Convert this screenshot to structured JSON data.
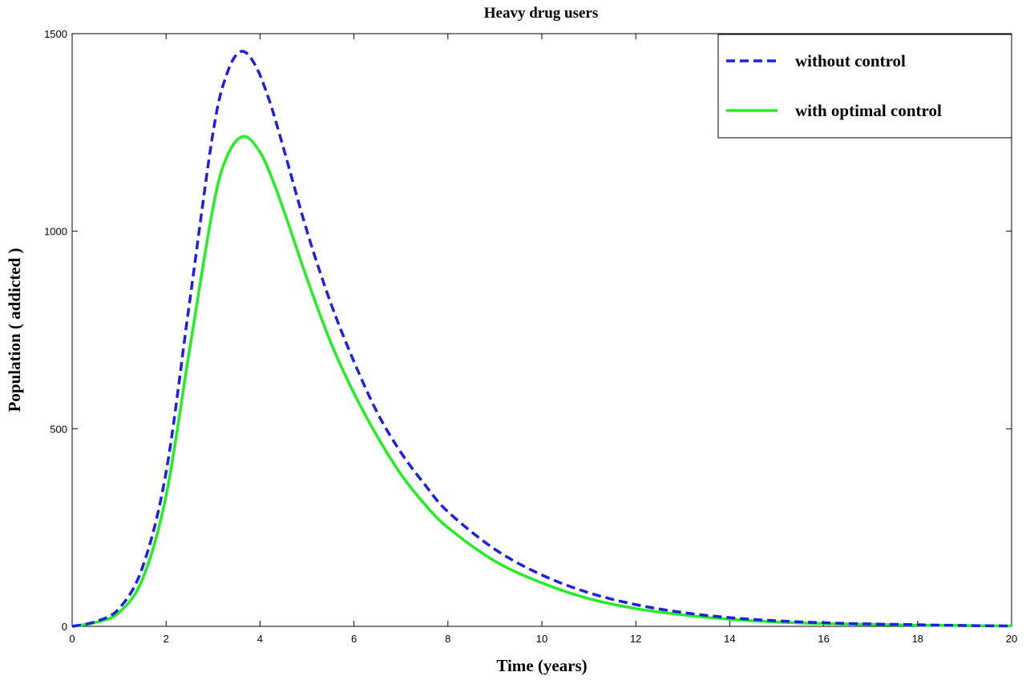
{
  "chart_data": {
    "type": "line",
    "title": "Heavy drug users",
    "xlabel": "Time (years)",
    "ylabel": "Population ( addicted )",
    "xlim": [
      0,
      20
    ],
    "ylim": [
      0,
      1500
    ],
    "x_ticks": [
      0,
      2,
      4,
      6,
      8,
      10,
      12,
      14,
      16,
      18,
      20
    ],
    "y_ticks": [
      0,
      500,
      1000,
      1500
    ],
    "grid": false,
    "legend_position": "top-right",
    "series": [
      {
        "name": "without control",
        "color": "#1f1fe0",
        "style": "dashed",
        "x": [
          0,
          0.5,
          1,
          1.5,
          2,
          2.5,
          3,
          3.3,
          3.6,
          3.9,
          4.2,
          4.5,
          5,
          5.5,
          6,
          6.5,
          7,
          7.5,
          8,
          9,
          10,
          11,
          12,
          13,
          14,
          15,
          16,
          17,
          18,
          19,
          20
        ],
        "y": [
          0,
          12,
          45,
          150,
          390,
          820,
          1250,
          1400,
          1455,
          1420,
          1330,
          1210,
          1000,
          820,
          670,
          540,
          440,
          360,
          290,
          195,
          130,
          85,
          55,
          35,
          22,
          14,
          9,
          6,
          4,
          2,
          1
        ]
      },
      {
        "name": "with optimal control",
        "color": "#22ee22",
        "style": "solid",
        "x": [
          0,
          0.5,
          1,
          1.5,
          2,
          2.5,
          3,
          3.3,
          3.65,
          4,
          4.3,
          4.6,
          5,
          5.5,
          6,
          6.5,
          7,
          7.5,
          8,
          9,
          10,
          11,
          12,
          13,
          14,
          15,
          16,
          17,
          18,
          19,
          20
        ],
        "y": [
          0,
          10,
          35,
          120,
          330,
          700,
          1060,
          1190,
          1240,
          1200,
          1120,
          1020,
          880,
          720,
          590,
          480,
          385,
          310,
          250,
          165,
          110,
          70,
          45,
          29,
          18,
          11,
          7,
          5,
          3,
          2,
          1
        ]
      }
    ]
  }
}
